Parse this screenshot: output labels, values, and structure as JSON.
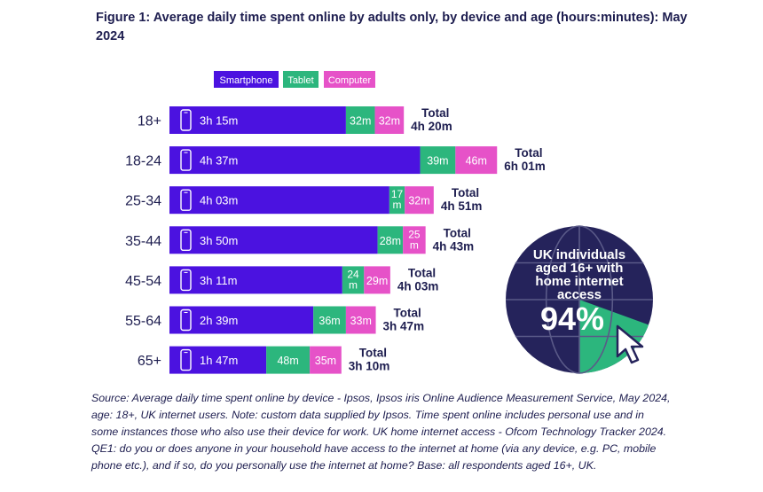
{
  "title": "Figure 1: Average daily time spent online by adults only, by device and age (hours:minutes): May 2024",
  "source": "Source: Average daily time spent online by device - Ipsos, Ipsos iris Online Audience Measurement Service, May 2024, age: 18+, UK internet users. Note: custom data supplied by Ipsos. Time spent online includes personal use and in some instances those who also use their device for work. UK home internet access - Ofcom Technology Tracker 2024. QE1: do you or does anyone in your household have access to the internet at home (via any device, e.g. PC, mobile phone etc.), and if so, do you personally use the internet at home? Base: all respondents aged 16+, UK.",
  "chart_data": {
    "type": "bar",
    "orientation": "horizontal",
    "stacked": true,
    "unit": "minutes",
    "categories": [
      "18+",
      "18-24",
      "25-34",
      "35-44",
      "45-54",
      "55-64",
      "65+"
    ],
    "series": [
      {
        "name": "Smartphone",
        "color": "#4b12e0",
        "values": [
          195,
          277,
          243,
          230,
          191,
          159,
          107
        ],
        "labels": [
          "3h 15m",
          "4h 37m",
          "4h 03m",
          "3h 50m",
          "3h 11m",
          "2h 39m",
          "1h 47m"
        ]
      },
      {
        "name": "Tablet",
        "color": "#2cb67d",
        "values": [
          32,
          39,
          17,
          28,
          24,
          36,
          48
        ],
        "labels": [
          "32m",
          "39m",
          "17 m",
          "28m",
          "24 m",
          "36m",
          "48m"
        ]
      },
      {
        "name": "Computer",
        "color": "#e652c8",
        "values": [
          32,
          46,
          32,
          25,
          29,
          33,
          35
        ],
        "labels": [
          "32m",
          "46m",
          "32m",
          "25 m",
          "29m",
          "33m",
          "35m"
        ]
      }
    ],
    "totals": [
      "Total 4h 20m",
      "Total 6h 01m",
      "Total 4h 51m",
      "Total 4h 43m",
      "Total 4h 03m",
      "Total 3h 47m",
      "Total 3h 10m"
    ],
    "legend_position": "top-left",
    "grid": false,
    "xlim": [
      0,
      400
    ],
    "callout": {
      "text_lines": [
        "UK individuals",
        "aged 16+ with",
        "home internet",
        "access"
      ],
      "value": "94%",
      "share": 94,
      "colors": {
        "globe": "#25235b",
        "accent": "#2cb67d",
        "text": "#ffffff"
      }
    }
  }
}
